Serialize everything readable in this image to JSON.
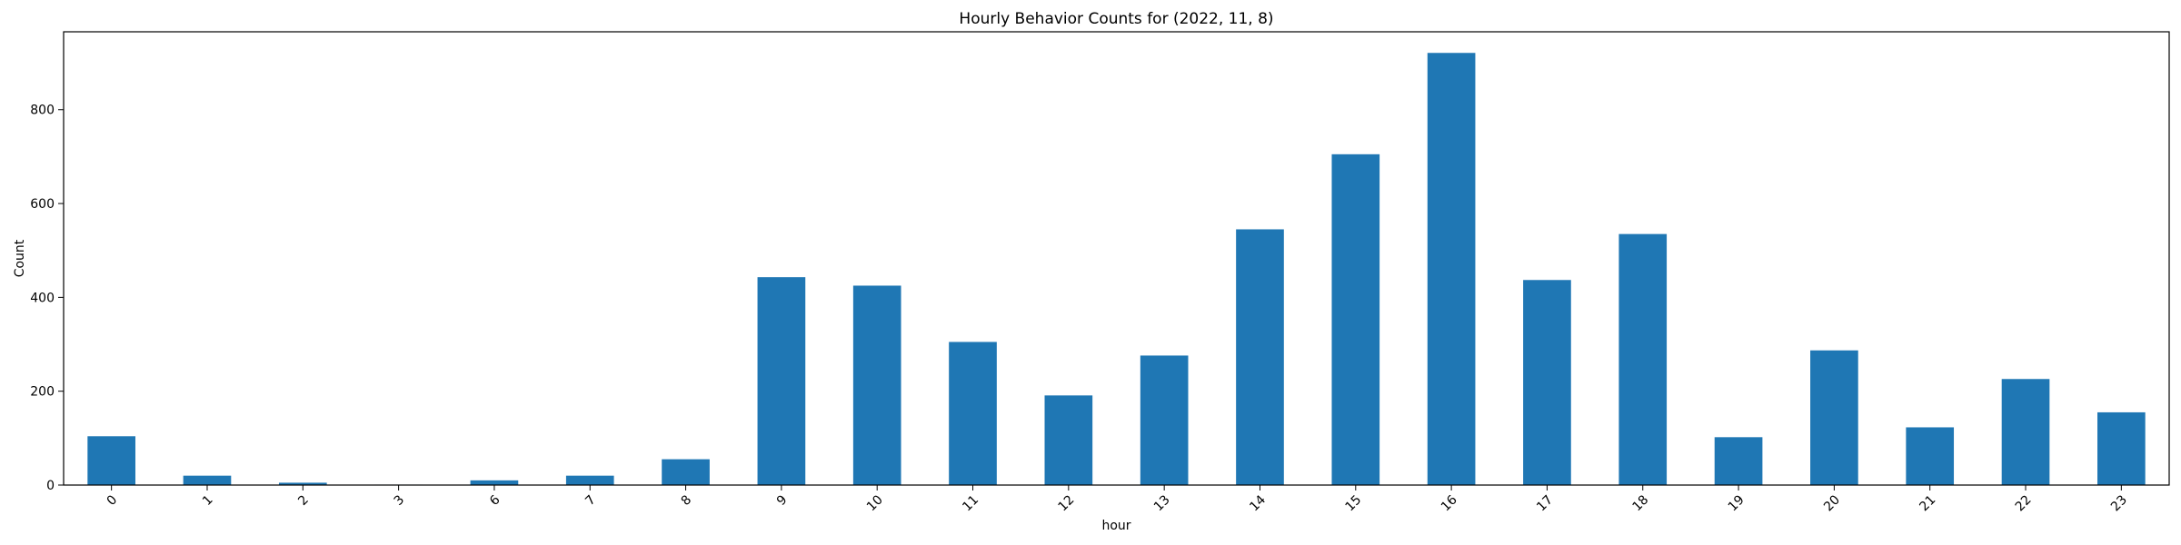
{
  "chart_data": {
    "type": "bar",
    "title": "Hourly Behavior Counts for (2022, 11, 8)",
    "xlabel": "hour",
    "ylabel": "Count",
    "categories": [
      "0",
      "1",
      "2",
      "3",
      "6",
      "7",
      "8",
      "9",
      "10",
      "11",
      "12",
      "13",
      "14",
      "15",
      "16",
      "17",
      "18",
      "19",
      "20",
      "21",
      "22",
      "23"
    ],
    "values": [
      104,
      20,
      5,
      1,
      10,
      20,
      55,
      443,
      425,
      305,
      191,
      276,
      545,
      705,
      921,
      437,
      535,
      102,
      287,
      123,
      226,
      155
    ],
    "ylim": [
      0,
      966
    ],
    "yticks": [
      0,
      200,
      400,
      600,
      800
    ],
    "grid": false,
    "bar_color": "#1f77b4"
  }
}
